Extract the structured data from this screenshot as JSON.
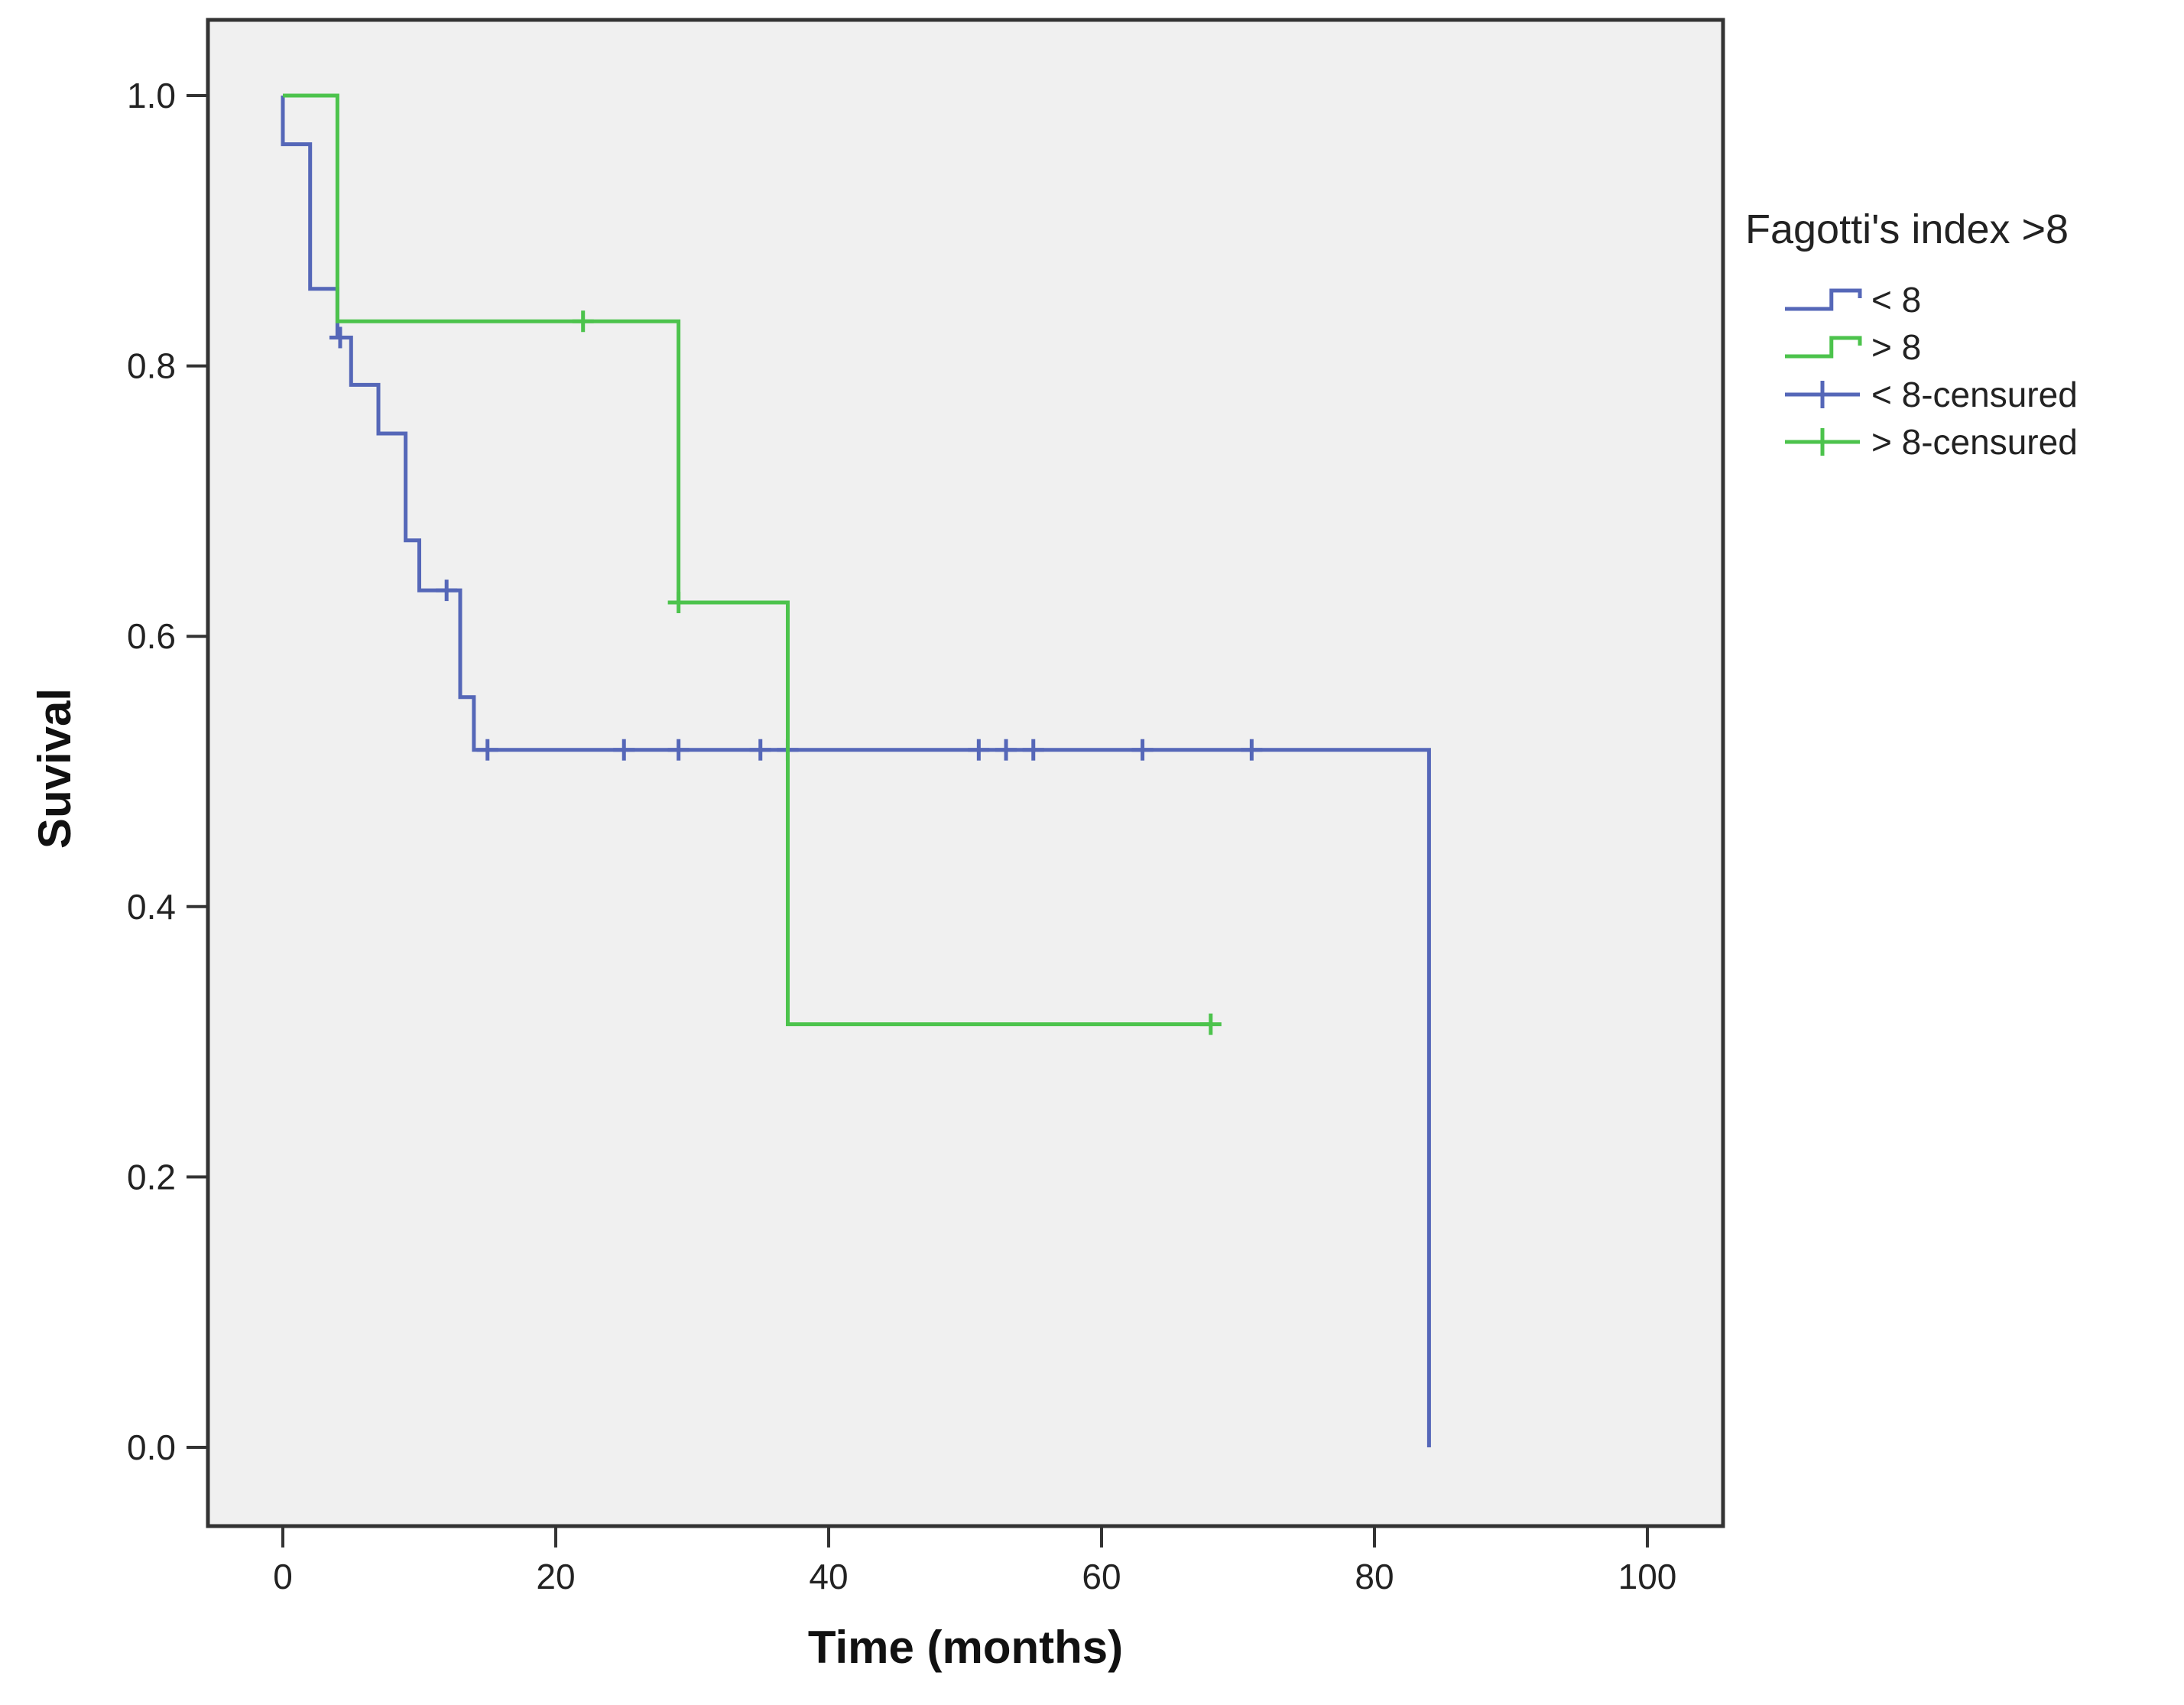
{
  "chart_data": {
    "type": "line",
    "subtype": "kaplan-meier-step",
    "title": "",
    "xlabel": "Time (months)",
    "ylabel": "Suvival",
    "xlim": [
      -5,
      105
    ],
    "ylim": [
      -0.05,
      1.07
    ],
    "x_ticks": [
      0,
      20,
      40,
      60,
      80,
      100
    ],
    "x_tick_labels": [
      "0",
      "20",
      "40",
      "60",
      "80",
      "100"
    ],
    "y_ticks": [
      0.0,
      0.2,
      0.4,
      0.6,
      0.8,
      1.0
    ],
    "y_tick_labels": [
      "0.0",
      "0.2",
      "0.4",
      "0.6",
      "0.8",
      "1.0"
    ],
    "grid": false,
    "plot_background": "#f0f0f0",
    "legend": {
      "title": "Fagotti's index >8",
      "position": "right",
      "entries": [
        {
          "label": "< 8",
          "kind": "step",
          "series": 0
        },
        {
          "label": "> 8",
          "kind": "step",
          "series": 1
        },
        {
          "label": "< 8-censured",
          "kind": "censor",
          "series": 0
        },
        {
          "label": "> 8-censured",
          "kind": "censor",
          "series": 1
        }
      ]
    },
    "series": [
      {
        "name": "< 8",
        "color": "#5567b8",
        "steps": [
          [
            0,
            1.0
          ],
          [
            0,
            0.964
          ],
          [
            2,
            0.964
          ],
          [
            2,
            0.857
          ],
          [
            4,
            0.857
          ],
          [
            4,
            0.821
          ],
          [
            5,
            0.821
          ],
          [
            5,
            0.786
          ],
          [
            7,
            0.786
          ],
          [
            7,
            0.75
          ],
          [
            9,
            0.75
          ],
          [
            9,
            0.671
          ],
          [
            10,
            0.671
          ],
          [
            10,
            0.634
          ],
          [
            13,
            0.634
          ],
          [
            13,
            0.555
          ],
          [
            14,
            0.555
          ],
          [
            14,
            0.516
          ],
          [
            84,
            0.516
          ],
          [
            84,
            0.0
          ]
        ],
        "censored": [
          [
            4.2,
            0.821
          ],
          [
            12,
            0.634
          ],
          [
            15,
            0.516
          ],
          [
            25,
            0.516
          ],
          [
            29,
            0.516
          ],
          [
            35,
            0.516
          ],
          [
            37,
            0.516
          ],
          [
            51,
            0.516
          ],
          [
            53,
            0.516
          ],
          [
            55,
            0.516
          ],
          [
            63,
            0.516
          ],
          [
            71,
            0.516
          ]
        ]
      },
      {
        "name": "> 8",
        "color": "#4cc34c",
        "steps": [
          [
            0,
            1.0
          ],
          [
            4,
            1.0
          ],
          [
            4,
            0.833
          ],
          [
            29,
            0.833
          ],
          [
            29,
            0.625
          ],
          [
            37,
            0.625
          ],
          [
            37,
            0.313
          ],
          [
            68,
            0.313
          ]
        ],
        "censored": [
          [
            22,
            0.833
          ],
          [
            29,
            0.625
          ],
          [
            68,
            0.313
          ]
        ]
      }
    ]
  }
}
